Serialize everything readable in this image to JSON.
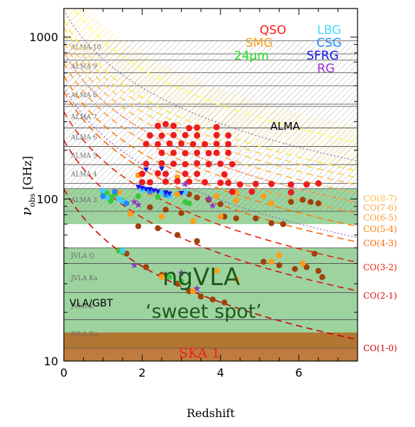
{
  "chart_data": {
    "type": "scatter",
    "xlabel": "Redshift",
    "ylabel": "ν_obs [GHz]",
    "ylabel_main": "ν",
    "ylabel_sub": "obs",
    "ylabel_unit": "[GHz]",
    "xlim": [
      0,
      7.5
    ],
    "ylim": [
      10,
      1500
    ],
    "yscale": "log",
    "x_ticks": [
      0,
      2,
      4,
      6
    ],
    "x_tick_labels": [
      "0",
      "2",
      "4",
      "6"
    ],
    "y_ticks": [
      10,
      100,
      1000
    ],
    "y_tick_labels": [
      "10",
      "100",
      "1000"
    ],
    "legend": [
      {
        "label": "QSO",
        "color": "#ff1a1a"
      },
      {
        "label": "SMG",
        "color": "#ffa31a"
      },
      {
        "label": "24μm",
        "color": "#22dd22"
      },
      {
        "label": "LBG",
        "color": "#44ddff"
      },
      {
        "label": "CSG",
        "color": "#2288ff"
      },
      {
        "label": "SFRG",
        "color": "#1515ee"
      },
      {
        "label": "RG",
        "color": "#9933cc"
      }
    ],
    "bands": [
      {
        "name": "ALMA 10",
        "lo": 787,
        "hi": 950,
        "color": "#cfcfcf"
      },
      {
        "name": "ALMA 9",
        "lo": 602,
        "hi": 720,
        "color": "#cfcfcf"
      },
      {
        "name": "ALMA 8",
        "lo": 385,
        "hi": 500,
        "color": "#cfcfcf"
      },
      {
        "name": "ALMA 7",
        "lo": 275,
        "hi": 373,
        "color": "#cfcfcf"
      },
      {
        "name": "ALMA 6",
        "lo": 211,
        "hi": 275,
        "color": "#cfcfcf"
      },
      {
        "name": "ALMA 5",
        "lo": 163,
        "hi": 211,
        "color": "#cfcfcf"
      },
      {
        "name": "ALMA 4",
        "lo": 125,
        "hi": 163,
        "color": "#cfcfcf"
      },
      {
        "name": "ALMA 3",
        "lo": 84,
        "hi": 116,
        "color": "#7fc77f"
      },
      {
        "name": "JVLA Q",
        "lo": 40,
        "hi": 50,
        "color": "#7fc77f"
      },
      {
        "name": "JVLA Ka",
        "lo": 26.5,
        "hi": 40,
        "color": "#7fc77f"
      },
      {
        "name": "JVLA K",
        "lo": 18,
        "hi": 26.5,
        "color": "#7fc77f"
      },
      {
        "name": "JVLA Ku",
        "lo": 12,
        "hi": 18,
        "color": "#7fc77f"
      }
    ],
    "regions": [
      {
        "name": "ngVLA",
        "lo": 1.2,
        "hi": 116,
        "color": "#4caf50",
        "opacity": 0.55
      },
      {
        "name": "ALMA hatched",
        "lo": 84,
        "hi": 950,
        "color": "#bbbbbb"
      },
      {
        "name": "SKA 1",
        "lo": 10,
        "hi": 15,
        "color": "#b5651d"
      }
    ],
    "annotations": {
      "alma": "ALMA",
      "ngvla": "ngVLA",
      "sweet_spot": "‘sweet spot’",
      "vla_gbt": "VLA/GBT",
      "ska": "SKA 1"
    },
    "co_lines": [
      {
        "label": "CO(8-7)",
        "rest_ghz": 921.8,
        "color": "#ffb84d",
        "style": "dashed"
      },
      {
        "label": "CO(7-6)",
        "rest_ghz": 806.7,
        "color": "#ffa64d",
        "style": "dashed"
      },
      {
        "label": "CO(6-5)",
        "rest_ghz": 691.5,
        "color": "#ff9933",
        "style": "dashed"
      },
      {
        "label": "CO(5-4)",
        "rest_ghz": 576.3,
        "color": "#ff8000",
        "style": "dashed"
      },
      {
        "label": "CO(4-3)",
        "rest_ghz": 461.0,
        "color": "#ff6600",
        "style": "dashed"
      },
      {
        "label": "CO(3-2)",
        "rest_ghz": 345.8,
        "color": "#ee2200",
        "style": "dashed"
      },
      {
        "label": "CO(2-1)",
        "rest_ghz": 230.5,
        "color": "#dd1111",
        "style": "dashed"
      },
      {
        "label": "CO(1-0)",
        "rest_ghz": 115.3,
        "color": "#cc0000",
        "style": "dashed"
      }
    ],
    "extra_lines": [
      {
        "rest_ghz": 1267,
        "color": "#ffe24d",
        "style": "dashed"
      },
      {
        "rest_ghz": 1152,
        "color": "#ffd24d",
        "style": "dashed"
      },
      {
        "rest_ghz": 1037,
        "color": "#ffc84d",
        "style": "dashed"
      },
      {
        "rest_ghz": 1900,
        "color": "#ffff66",
        "style": "dashed"
      },
      {
        "rest_ghz": 492,
        "color": "#9b59b6",
        "style": "dotted"
      },
      {
        "rest_ghz": 809,
        "color": "#9b59b6",
        "style": "dotted"
      },
      {
        "rest_ghz": 1461,
        "color": "#9b59b6",
        "style": "dotted"
      }
    ],
    "points": {
      "QSO": [
        [
          2.4,
          283
        ],
        [
          2.6,
          290
        ],
        [
          2.8,
          283
        ],
        [
          3.2,
          274
        ],
        [
          3.4,
          276
        ],
        [
          3.9,
          278
        ],
        [
          2.2,
          247
        ],
        [
          2.5,
          246
        ],
        [
          2.8,
          248
        ],
        [
          3.1,
          248
        ],
        [
          3.4,
          247
        ],
        [
          3.9,
          248
        ],
        [
          4.2,
          247
        ],
        [
          2.1,
          219
        ],
        [
          2.4,
          218
        ],
        [
          2.7,
          220
        ],
        [
          3.0,
          220
        ],
        [
          3.3,
          218
        ],
        [
          3.6,
          218
        ],
        [
          3.9,
          219
        ],
        [
          4.2,
          218
        ],
        [
          2.5,
          193
        ],
        [
          2.8,
          193
        ],
        [
          3.1,
          192
        ],
        [
          3.4,
          193
        ],
        [
          3.7,
          192
        ],
        [
          3.9,
          193
        ],
        [
          4.2,
          193
        ],
        [
          2.1,
          165
        ],
        [
          2.5,
          166
        ],
        [
          2.8,
          165
        ],
        [
          3.1,
          164
        ],
        [
          3.4,
          166
        ],
        [
          3.7,
          164
        ],
        [
          4.0,
          165
        ],
        [
          4.3,
          164
        ],
        [
          2.0,
          143
        ],
        [
          2.4,
          144
        ],
        [
          2.6,
          143
        ],
        [
          3.1,
          143
        ],
        [
          3.4,
          143
        ],
        [
          4.1,
          142
        ],
        [
          2.0,
          127
        ],
        [
          2.2,
          127
        ],
        [
          2.6,
          128
        ],
        [
          2.9,
          129
        ],
        [
          3.2,
          128
        ],
        [
          3.6,
          127
        ],
        [
          4.0,
          126
        ],
        [
          4.2,
          126
        ],
        [
          4.5,
          123
        ],
        [
          4.9,
          124
        ],
        [
          5.3,
          124
        ],
        [
          5.8,
          123
        ],
        [
          6.2,
          123
        ],
        [
          6.5,
          125
        ],
        [
          4.3,
          111
        ],
        [
          4.8,
          111
        ],
        [
          5.8,
          110
        ]
      ],
      "SMG": [
        [
          1.9,
          140
        ],
        [
          2.9,
          136
        ],
        [
          1.4,
          110
        ],
        [
          2.2,
          109
        ],
        [
          2.9,
          107
        ],
        [
          3.9,
          104
        ],
        [
          4.4,
          98
        ],
        [
          5.3,
          94
        ],
        [
          1.7,
          81
        ],
        [
          2.5,
          78
        ],
        [
          3.3,
          73
        ],
        [
          4.0,
          78
        ],
        [
          4.4,
          110
        ],
        [
          5.1,
          104
        ],
        [
          2.5,
          33
        ],
        [
          3.3,
          27
        ],
        [
          3.9,
          36
        ],
        [
          4.4,
          32
        ],
        [
          5.3,
          41
        ],
        [
          5.5,
          45
        ],
        [
          6.1,
          40
        ]
      ],
      "SMG_brown": [
        [
          3.2,
          107
        ],
        [
          3.4,
          102
        ],
        [
          3.7,
          99
        ],
        [
          4.0,
          93
        ],
        [
          5.8,
          96
        ],
        [
          6.1,
          99
        ],
        [
          6.3,
          96
        ],
        [
          6.5,
          94
        ],
        [
          2.2,
          89
        ],
        [
          2.6,
          86
        ],
        [
          3.0,
          82
        ],
        [
          4.1,
          78
        ],
        [
          4.4,
          76
        ],
        [
          4.9,
          76
        ],
        [
          5.3,
          71
        ],
        [
          5.6,
          70
        ],
        [
          1.9,
          68
        ],
        [
          2.4,
          66
        ],
        [
          2.9,
          60
        ],
        [
          3.4,
          55
        ],
        [
          1.6,
          46
        ],
        [
          2.1,
          38
        ],
        [
          2.5,
          34
        ],
        [
          2.9,
          30
        ],
        [
          3.2,
          27
        ],
        [
          3.5,
          25
        ],
        [
          3.8,
          24
        ],
        [
          4.1,
          23
        ],
        [
          5.1,
          41
        ],
        [
          5.5,
          39
        ],
        [
          5.9,
          37
        ],
        [
          6.2,
          38
        ],
        [
          6.5,
          36
        ],
        [
          6.4,
          46
        ],
        [
          6.6,
          33
        ]
      ],
      "24um": [
        [
          1.0,
          111
        ],
        [
          1.1,
          109
        ],
        [
          1.3,
          107
        ],
        [
          1.2,
          103
        ],
        [
          1.5,
          98
        ],
        [
          1.9,
          104
        ],
        [
          2.4,
          103
        ],
        [
          1.2,
          97
        ],
        [
          1.6,
          94
        ],
        [
          3.1,
          96
        ],
        [
          3.2,
          94
        ],
        [
          1.4,
          48
        ],
        [
          1.5,
          47
        ],
        [
          2.7,
          33
        ],
        [
          3.0,
          31
        ]
      ],
      "LBG": [
        [
          1.0,
          113
        ],
        [
          1.1,
          102
        ],
        [
          1.4,
          100
        ],
        [
          1.5,
          97
        ],
        [
          2.0,
          114
        ],
        [
          2.5,
          110
        ],
        [
          2.7,
          104
        ],
        [
          3.1,
          110
        ],
        [
          1.5,
          48
        ]
      ],
      "CSG": [
        [
          1.0,
          104
        ],
        [
          1.3,
          111
        ],
        [
          1.6,
          94
        ],
        [
          2.2,
          111
        ],
        [
          2.6,
          106
        ]
      ],
      "SFRG": [
        [
          1.9,
          119
        ],
        [
          2.0,
          117
        ],
        [
          2.2,
          115
        ],
        [
          2.6,
          110
        ],
        [
          2.7,
          108
        ],
        [
          3.0,
          109
        ],
        [
          2.1,
          115
        ],
        [
          2.3,
          113
        ],
        [
          2.4,
          111
        ]
      ],
      "RG": [
        [
          1.9,
          92
        ],
        [
          3.1,
          124
        ],
        [
          3.7,
          100
        ],
        [
          3.8,
          91
        ],
        [
          1.8,
          96
        ],
        [
          1.8,
          39
        ],
        [
          3.4,
          28
        ],
        [
          3.0,
          35
        ]
      ],
      "blue_tri": [
        [
          2.1,
          152
        ],
        [
          2.5,
          154
        ]
      ]
    }
  }
}
